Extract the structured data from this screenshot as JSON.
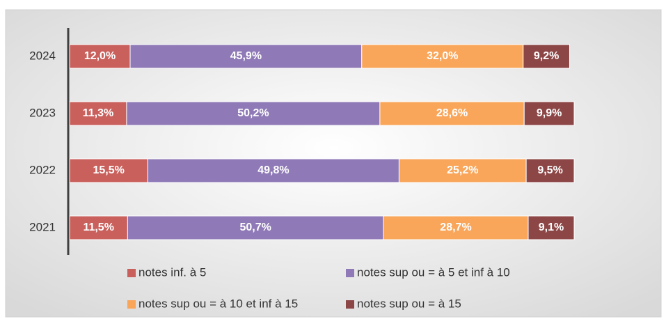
{
  "chart_data": {
    "type": "stacked-barh",
    "categories": [
      "2024",
      "2023",
      "2022",
      "2021"
    ],
    "series": [
      {
        "name": "notes inf. à 5",
        "color": "#c9605c",
        "values": [
          12.0,
          11.3,
          15.5,
          11.5
        ],
        "value_labels": [
          "12,0%",
          "11,3%",
          "15,5%",
          "11,5%"
        ]
      },
      {
        "name": "notes sup ou = à 5 et inf à 10",
        "color": "#8f7ab7",
        "values": [
          45.9,
          50.2,
          49.8,
          50.7
        ],
        "value_labels": [
          "45,9%",
          "50,2%",
          "49,8%",
          "50,7%"
        ]
      },
      {
        "name": "notes sup ou = à 10 et inf à 15",
        "color": "#f9a65a",
        "values": [
          32.0,
          28.6,
          25.2,
          28.7
        ],
        "value_labels": [
          "32,0%",
          "28,6%",
          "25,2%",
          "28,7%"
        ]
      },
      {
        "name": "notes sup ou = à 15",
        "color": "#8c4646",
        "values": [
          9.2,
          9.9,
          9.5,
          9.1
        ],
        "value_labels": [
          "9,2%",
          "9,9%",
          "9,5%",
          "9,1%"
        ]
      }
    ],
    "xlim": [
      0,
      100
    ]
  }
}
